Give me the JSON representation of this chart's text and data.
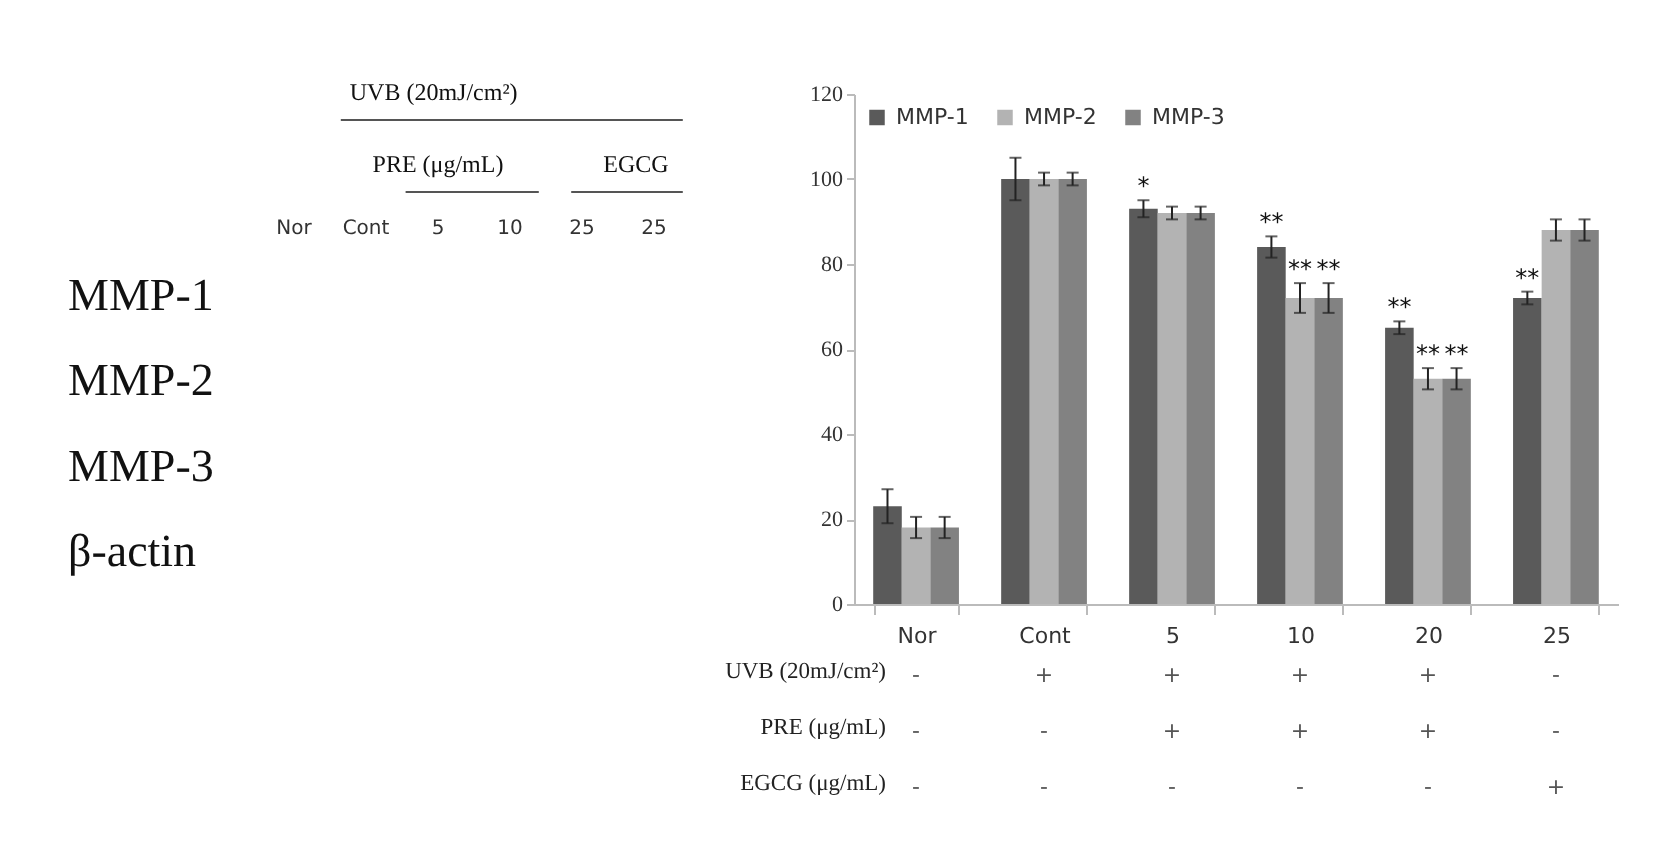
{
  "chart_data": [
    {
      "type": "other",
      "categories": [
        "Nor",
        "Cont",
        "5",
        "10",
        "25",
        "25"
      ],
      "y_categories": [
        "MMP-1",
        "MMP-2",
        "MMP-3",
        "β-actin"
      ],
      "annotations": [
        "UVB (20mJ/cm²)",
        "PRE (μg/mL)",
        "EGCG"
      ]
    },
    {
      "type": "bar",
      "categories": [
        "Nor",
        "Cont",
        "5",
        "10",
        "20",
        "25"
      ],
      "series": [
        {
          "name": "MMP-1",
          "color": "#5a5a5a",
          "values": [
            23,
            100,
            93,
            84,
            65,
            72
          ],
          "errors": [
            4,
            5,
            2,
            2.5,
            1.5,
            1.5
          ],
          "value_labels": [
            null,
            null,
            "*",
            "**",
            "**",
            "**"
          ]
        },
        {
          "name": "MMP-2",
          "color": "#b3b3b3",
          "values": [
            18,
            100,
            92,
            72,
            53,
            88
          ],
          "errors": [
            2.5,
            1.5,
            1.5,
            3.5,
            2.5,
            2.5
          ],
          "value_labels": [
            null,
            null,
            null,
            "**",
            "**",
            null
          ]
        },
        {
          "name": "MMP-3",
          "color": "#828282",
          "values": [
            18,
            100,
            92,
            72,
            53,
            88
          ],
          "errors": [
            2.5,
            1.5,
            1.5,
            3.5,
            2.5,
            2.5
          ],
          "value_labels": [
            null,
            null,
            null,
            "**",
            "**",
            null
          ]
        }
      ],
      "ylim": [
        0,
        120
      ],
      "yticks": [
        0,
        20,
        40,
        60,
        80,
        100,
        120
      ],
      "grid": false,
      "legend": "top left",
      "annotations": [
        "UVB (20mJ/cm²)",
        "-",
        "+",
        "+",
        "+",
        "+",
        "-",
        "PRE (μg/mL)",
        "-",
        "-",
        "+",
        "+",
        "+",
        "-",
        "EGCG (μg/mL)",
        "-",
        "-",
        "-",
        "-",
        "-",
        "+"
      ]
    }
  ]
}
